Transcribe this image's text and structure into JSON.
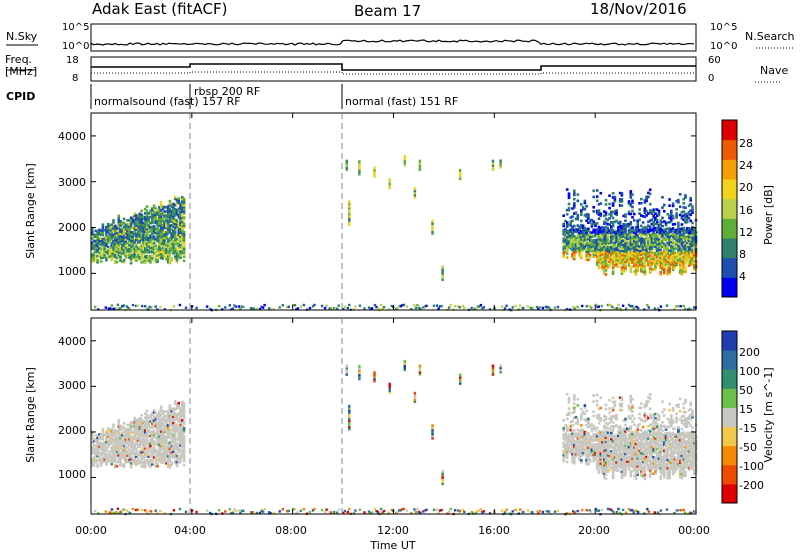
{
  "header": {
    "title": "Adak East (fitACF)",
    "beam": "Beam 17",
    "date": "18/Nov/2016"
  },
  "top_panels": {
    "nsky_label": "N.Sky",
    "nsky_ticks": [
      "10^5",
      "10^0"
    ],
    "nsearch_label": "N.Search",
    "nsearch_ticks": [
      "10^5",
      "10^0"
    ],
    "freq_label_line1": "Freq.",
    "freq_label_line2": "[MHz]",
    "freq_ticks": [
      "18",
      "8"
    ],
    "nave_label": "Nave",
    "nave_ticks": [
      "60",
      "0"
    ],
    "cpid_label": "CPID",
    "cpid_segments": [
      {
        "label": "normalsound (fast) 157 RF"
      },
      {
        "label": "rbsp 200 RF"
      },
      {
        "label": "normal (fast) 151 RF"
      }
    ]
  },
  "chart_data": [
    {
      "type": "heatmap",
      "ylabel": "Slant Range [km]",
      "ylim": [
        200,
        4500
      ],
      "yticks": [
        "4000",
        "3000",
        "2000",
        "1000"
      ],
      "xlim": [
        0,
        24
      ],
      "xticks": [
        "00:00",
        "04:00",
        "08:00",
        "12:00",
        "16:00",
        "20:00",
        "00:00"
      ],
      "colorbar": {
        "label": "Power [dB]",
        "ticks": [
          "28",
          "24",
          "20",
          "16",
          "12",
          "8",
          "4"
        ],
        "colors": [
          "#0000ee",
          "#1f4fb0",
          "#2f7f6f",
          "#5fae3a",
          "#b9d24a",
          "#f2d21b",
          "#f5a000",
          "#ee5a00",
          "#dd0000"
        ]
      },
      "regions": [
        {
          "x": [
            0.0,
            3.7
          ],
          "range_km": [
            1100,
            2800
          ],
          "dominant_db": "8-16"
        },
        {
          "x": [
            18.7,
            24.0
          ],
          "range_km": [
            1000,
            2900
          ],
          "dominant_db": "12-24"
        },
        {
          "x": [
            0.0,
            24.0
          ],
          "range_km": [
            200,
            300
          ],
          "dominant_db": "4-16"
        }
      ]
    },
    {
      "type": "heatmap",
      "ylabel": "Slant Range [km]",
      "ylim": [
        200,
        4500
      ],
      "yticks": [
        "4000",
        "3000",
        "2000",
        "1000"
      ],
      "xlim": [
        0,
        24
      ],
      "xticks": [
        "00:00",
        "04:00",
        "08:00",
        "12:00",
        "16:00",
        "20:00",
        "00:00"
      ],
      "colorbar": {
        "label": "Velocity [m s^-1]",
        "ticks": [
          "200",
          "100",
          "50",
          "15",
          "-15",
          "-50",
          "-100",
          "-200"
        ],
        "colors": [
          "#1f3fb0",
          "#2f6fa0",
          "#2f8f6f",
          "#6cc04a",
          "#c8c8c0",
          "#f2c84a",
          "#f58a00",
          "#ee4a00",
          "#dd0000"
        ]
      },
      "regions": [
        {
          "x": [
            0.0,
            3.7
          ],
          "range_km": [
            1100,
            2800
          ],
          "dominant": "ground scatter"
        },
        {
          "x": [
            18.7,
            24.0
          ],
          "range_km": [
            1000,
            2900
          ],
          "dominant": "ground scatter"
        }
      ]
    }
  ],
  "xaxis": {
    "label": "Time UT"
  },
  "colors": {
    "ground_scatter": "#c8c8c0"
  }
}
